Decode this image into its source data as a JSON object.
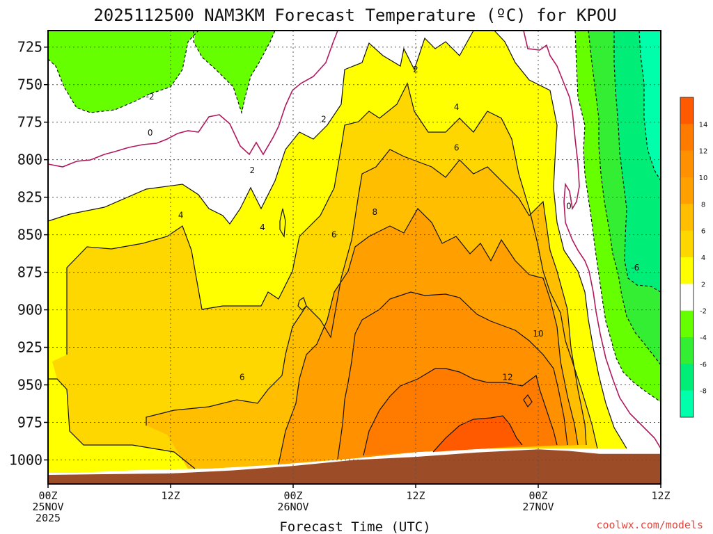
{
  "chart_data": {
    "type": "time-height contour",
    "title": "2025112500 NAM3KM Forecast Temperature (ºC) for KPOU",
    "xlabel": "Forecast Time (UTC)",
    "ylabel": "",
    "credit": "coolwx.com/models",
    "x_ticks": [
      {
        "hour": 0,
        "line1": "00Z",
        "line2": "25NOV",
        "line3": "2025"
      },
      {
        "hour": 12,
        "line1": "12Z",
        "line2": "",
        "line3": ""
      },
      {
        "hour": 24,
        "line1": "00Z",
        "line2": "26NOV",
        "line3": ""
      },
      {
        "hour": 36,
        "line1": "12Z",
        "line2": "",
        "line3": ""
      },
      {
        "hour": 48,
        "line1": "00Z",
        "line2": "27NOV",
        "line3": ""
      },
      {
        "hour": 60,
        "line1": "12Z",
        "line2": "",
        "line3": ""
      }
    ],
    "x_range_hours": [
      0,
      60
    ],
    "y_ticks": [
      "725",
      "750",
      "775",
      "800",
      "825",
      "850",
      "875",
      "900",
      "925",
      "950",
      "975",
      "1000"
    ],
    "y_range_hpa": [
      1016,
      714
    ],
    "colorbar": {
      "labels": [
        "14",
        "12",
        "10",
        "8",
        "6",
        "4",
        "2",
        "-2",
        "-4",
        "-6",
        "-8"
      ],
      "bins": [
        {
          "label_range": "14-16",
          "color": "#ff5a00"
        },
        {
          "label_range": "12-14",
          "color": "#ff7b00"
        },
        {
          "label_range": "10-12",
          "color": "#ff9100"
        },
        {
          "label_range": "8-10",
          "color": "#ffa000"
        },
        {
          "label_range": "6-8",
          "color": "#ffbe00"
        },
        {
          "label_range": "4-6",
          "color": "#ffd700"
        },
        {
          "label_range": "2-4",
          "color": "#ffff00"
        },
        {
          "label_range": "-2-2",
          "color": "#ffffff"
        },
        {
          "label_range": "-4--2",
          "color": "#66ff00"
        },
        {
          "label_range": "-6--4",
          "color": "#33ee33"
        },
        {
          "label_range": "-8--6",
          "color": "#00ee77"
        },
        {
          "label_range": "-10--8",
          "color": "#00ffaa"
        }
      ]
    },
    "contour_labels": [
      {
        "text": "-2",
        "hour": 10.0,
        "p": 758
      },
      {
        "text": "0",
        "hour": 10.0,
        "p": 782
      },
      {
        "text": "2",
        "hour": 20.0,
        "p": 807
      },
      {
        "text": "4",
        "hour": 13.0,
        "p": 837
      },
      {
        "text": "4",
        "hour": 21.0,
        "p": 845
      },
      {
        "text": "6",
        "hour": 19.0,
        "p": 945
      },
      {
        "text": "2",
        "hour": 27.0,
        "p": 773
      },
      {
        "text": "6",
        "hour": 28.0,
        "p": 850
      },
      {
        "text": "8",
        "hour": 32.0,
        "p": 835
      },
      {
        "text": "2",
        "hour": 36.0,
        "p": 740
      },
      {
        "text": "4",
        "hour": 40.0,
        "p": 765
      },
      {
        "text": "6",
        "hour": 40.0,
        "p": 792
      },
      {
        "text": "10",
        "hour": 48.0,
        "p": 916
      },
      {
        "text": "12",
        "hour": 45.0,
        "p": 945
      },
      {
        "text": "0",
        "hour": 51.0,
        "p": 831
      },
      {
        "text": "-6",
        "hour": 57.5,
        "p": 872
      }
    ],
    "surface_pressure_hpa": {
      "hours": [
        0,
        12,
        18,
        24,
        30,
        36,
        42,
        48,
        51,
        54,
        60
      ],
      "pressure": [
        1010,
        1009,
        1007,
        1004,
        1000,
        998,
        995,
        993,
        994,
        996,
        996
      ]
    }
  }
}
